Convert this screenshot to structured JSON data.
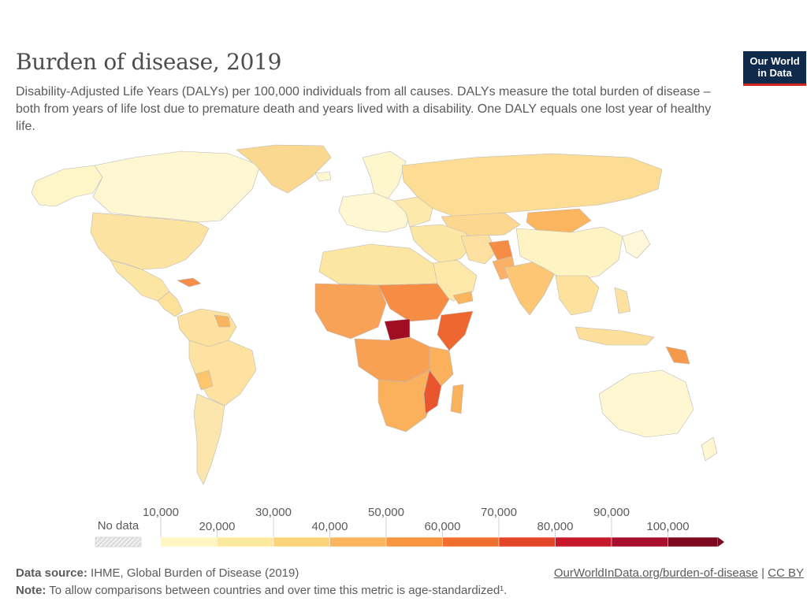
{
  "header": {
    "title": "Burden of disease, 2019",
    "subtitle": "Disability-Adjusted Life Years (DALYs) per 100,000 individuals from all causes. DALYs measure the total burden of disease – both from years of life lost due to premature death and years lived with a disability. One DALY equals one lost year of healthy life.",
    "logo_line1": "Our World",
    "logo_line2": "in Data"
  },
  "legend": {
    "no_data_label": "No data",
    "bins": [
      10000,
      20000,
      30000,
      40000,
      50000,
      60000,
      70000,
      80000,
      90000,
      100000
    ],
    "labels_top": [
      "10,000",
      "30,000",
      "50,000",
      "70,000",
      "90,000"
    ],
    "labels_bottom": [
      "20,000",
      "40,000",
      "60,000",
      "80,000",
      "100,000"
    ],
    "colors": [
      "#fef7c3",
      "#fde8a0",
      "#fcd27b",
      "#fbb55e",
      "#f89540",
      "#f26e2f",
      "#e44427",
      "#c61a2a",
      "#a80f2c",
      "#7e0a21"
    ],
    "no_data_color": "#dcdcdc"
  },
  "footer": {
    "source_label": "Data source:",
    "source_text": "IHME, Global Burden of Disease (2019)",
    "link_text": "OurWorldInData.org/burden-of-disease",
    "separator": "|",
    "license": "CC BY",
    "note_label": "Note:",
    "note_text": "To allow comparisons between countries and over time this metric is age-standardized¹."
  }
}
